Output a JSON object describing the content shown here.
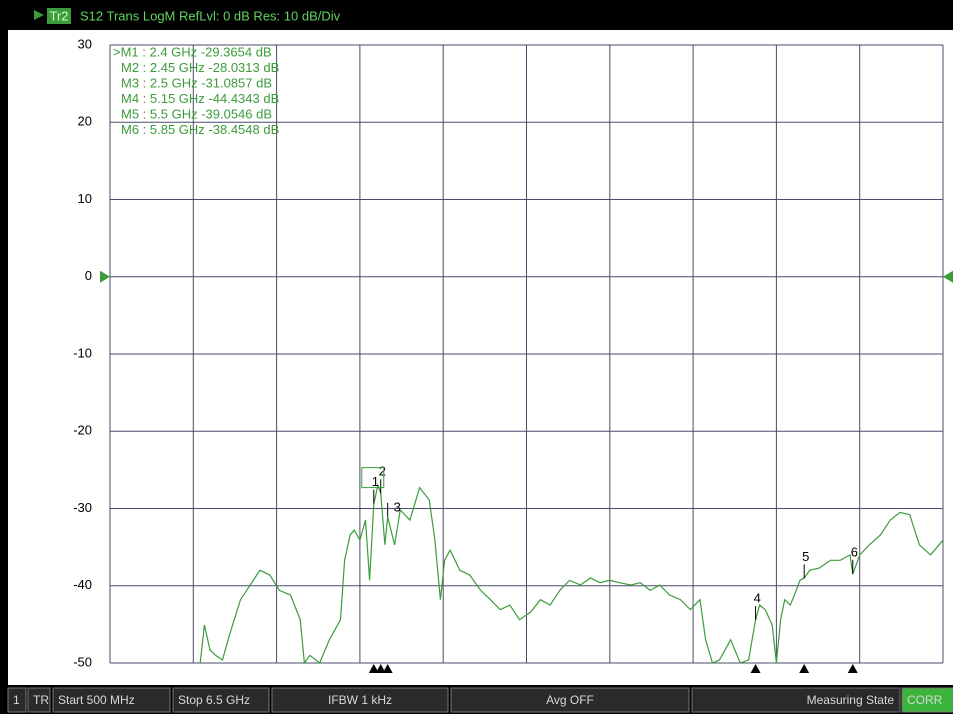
{
  "header": {
    "trace": "Tr2",
    "text": "S12 Trans LogM RefLvl: 0  dB Res: 10  dB/Div"
  },
  "chart_data": {
    "type": "line",
    "x": [
      1.15,
      1.18,
      1.22,
      1.26,
      1.31,
      1.36,
      1.44,
      1.51,
      1.58,
      1.65,
      1.72,
      1.8,
      1.87,
      1.9,
      1.94,
      2.01,
      2.08,
      2.16,
      2.19,
      2.23,
      2.26,
      2.3,
      2.34,
      2.37,
      2.4,
      2.43,
      2.45,
      2.48,
      2.5,
      2.55,
      2.59,
      2.66,
      2.73,
      2.8,
      2.84,
      2.88,
      2.91,
      2.95,
      3.02,
      3.09,
      3.17,
      3.24,
      3.31,
      3.38,
      3.45,
      3.53,
      3.6,
      3.67,
      3.74,
      3.81,
      3.89,
      3.96,
      4.03,
      4.1,
      4.17,
      4.25,
      4.32,
      4.39,
      4.46,
      4.53,
      4.61,
      4.68,
      4.75,
      4.79,
      4.84,
      4.89,
      4.97,
      5.04,
      5.1,
      5.15,
      5.18,
      5.22,
      5.27,
      5.3,
      5.33,
      5.36,
      5.4,
      5.43,
      5.47,
      5.5,
      5.54,
      5.61,
      5.69,
      5.76,
      5.83,
      5.85,
      5.9,
      5.97,
      6.05,
      6.12,
      6.19,
      6.26,
      6.33,
      6.41,
      6.5
    ],
    "series": [
      {
        "color": "#3c9c3c",
        "values": [
          -50.0,
          -45.1,
          -48.3,
          -49.0,
          -49.6,
          -46.4,
          -41.8,
          -39.9,
          -38.0,
          -38.6,
          -40.6,
          -41.2,
          -44.4,
          -50.0,
          -49.0,
          -50.0,
          -47.0,
          -44.4,
          -36.7,
          -33.4,
          -32.8,
          -34.1,
          -31.5,
          -39.3,
          -29.4,
          -27.0,
          -28.0,
          -34.7,
          -31.1,
          -34.7,
          -30.2,
          -31.5,
          -27.3,
          -28.9,
          -34.1,
          -41.8,
          -36.7,
          -35.4,
          -38.0,
          -38.6,
          -40.6,
          -41.8,
          -43.1,
          -42.5,
          -44.4,
          -43.4,
          -41.8,
          -42.5,
          -40.6,
          -39.3,
          -39.9,
          -39.0,
          -39.6,
          -39.3,
          -39.6,
          -39.9,
          -39.6,
          -40.6,
          -39.9,
          -41.2,
          -41.8,
          -43.1,
          -41.8,
          -47.0,
          -50.0,
          -49.6,
          -47.0,
          -50.0,
          -49.6,
          -44.4,
          -42.5,
          -43.1,
          -45.1,
          -50.0,
          -44.4,
          -41.8,
          -42.5,
          -41.2,
          -39.3,
          -39.0,
          -38.0,
          -37.7,
          -36.7,
          -36.7,
          -36.0,
          -38.5,
          -36.0,
          -34.7,
          -33.4,
          -31.5,
          -30.5,
          -30.8,
          -34.7,
          -36.0,
          -34.1
        ]
      }
    ],
    "xlim": [
      0.5,
      6.5
    ],
    "xticks": [
      0.5,
      1.1,
      1.7,
      2.3,
      2.9,
      3.5,
      4.1,
      4.7,
      5.3,
      5.9,
      6.5
    ],
    "ylim": [
      -50,
      30
    ],
    "yticks": [
      30,
      20,
      10,
      0,
      -10,
      -20,
      -30,
      -40,
      -50
    ],
    "ref_level": 0,
    "grid": true,
    "markers": [
      {
        "label": "1",
        "x": 2.4,
        "y": -29.3654,
        "readout": ">M1 :  2.4 GHz -29.3654  dB"
      },
      {
        "label": "2",
        "x": 2.45,
        "y": -28.0313,
        "readout": "M2 :  2.45 GHz -28.0313  dB"
      },
      {
        "label": "3",
        "x": 2.5,
        "y": -31.0857,
        "readout": "M3 :  2.5 GHz -31.0857  dB"
      },
      {
        "label": "4",
        "x": 5.15,
        "y": -44.4343,
        "readout": "M4 :  5.15 GHz -44.4343  dB"
      },
      {
        "label": "5",
        "x": 5.5,
        "y": -39.0546,
        "readout": "M5 :  5.5 GHz -39.0546  dB"
      },
      {
        "label": "6",
        "x": 5.85,
        "y": -38.4548,
        "readout": "M6 :  5.85 GHz -38.4548  dB"
      }
    ]
  },
  "status_bar": [
    "1",
    "TR",
    "Start 500 MHz",
    "Stop 6.5 GHz",
    "IFBW 1 kHz",
    "Avg OFF",
    "Measuring State",
    "CORR"
  ]
}
